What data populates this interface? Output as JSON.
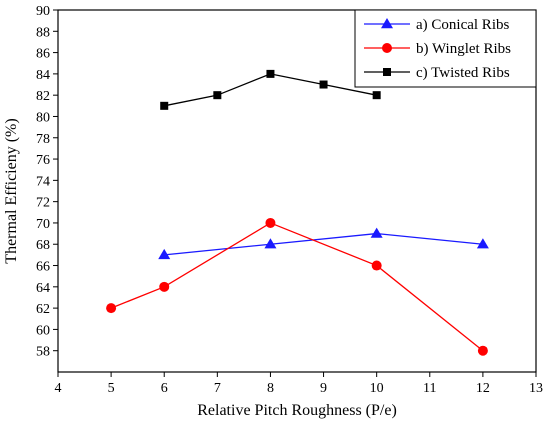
{
  "chart_data": {
    "type": "line",
    "title": "",
    "xlabel": "Relative Pitch Roughness (P/e)",
    "ylabel": "Thermal Efficieny (%)",
    "xlim": [
      4,
      13
    ],
    "ylim": [
      56,
      90
    ],
    "xticks": [
      "4",
      "5",
      "6",
      "7",
      "8",
      "9",
      "10",
      "11",
      "12",
      "13"
    ],
    "yticks": [
      "58",
      "60",
      "62",
      "64",
      "66",
      "68",
      "70",
      "72",
      "74",
      "76",
      "78",
      "80",
      "82",
      "84",
      "86",
      "88",
      "90"
    ],
    "grid": false,
    "legend_position": "top-right",
    "series": [
      {
        "name": "a) Conical Ribs",
        "color": "#1a1aff",
        "marker": "triangle",
        "x": [
          6,
          8,
          10,
          12
        ],
        "y": [
          67,
          68,
          69,
          68
        ]
      },
      {
        "name": "b) Winglet Ribs",
        "color": "#ff0000",
        "marker": "circle",
        "x": [
          5,
          6,
          8,
          10,
          12
        ],
        "y": [
          62,
          64,
          70,
          66,
          58
        ]
      },
      {
        "name": "c) Twisted Ribs",
        "color": "#000000",
        "marker": "square",
        "x": [
          6,
          7,
          8,
          9,
          10
        ],
        "y": [
          81,
          82,
          84,
          83,
          82
        ]
      }
    ]
  }
}
